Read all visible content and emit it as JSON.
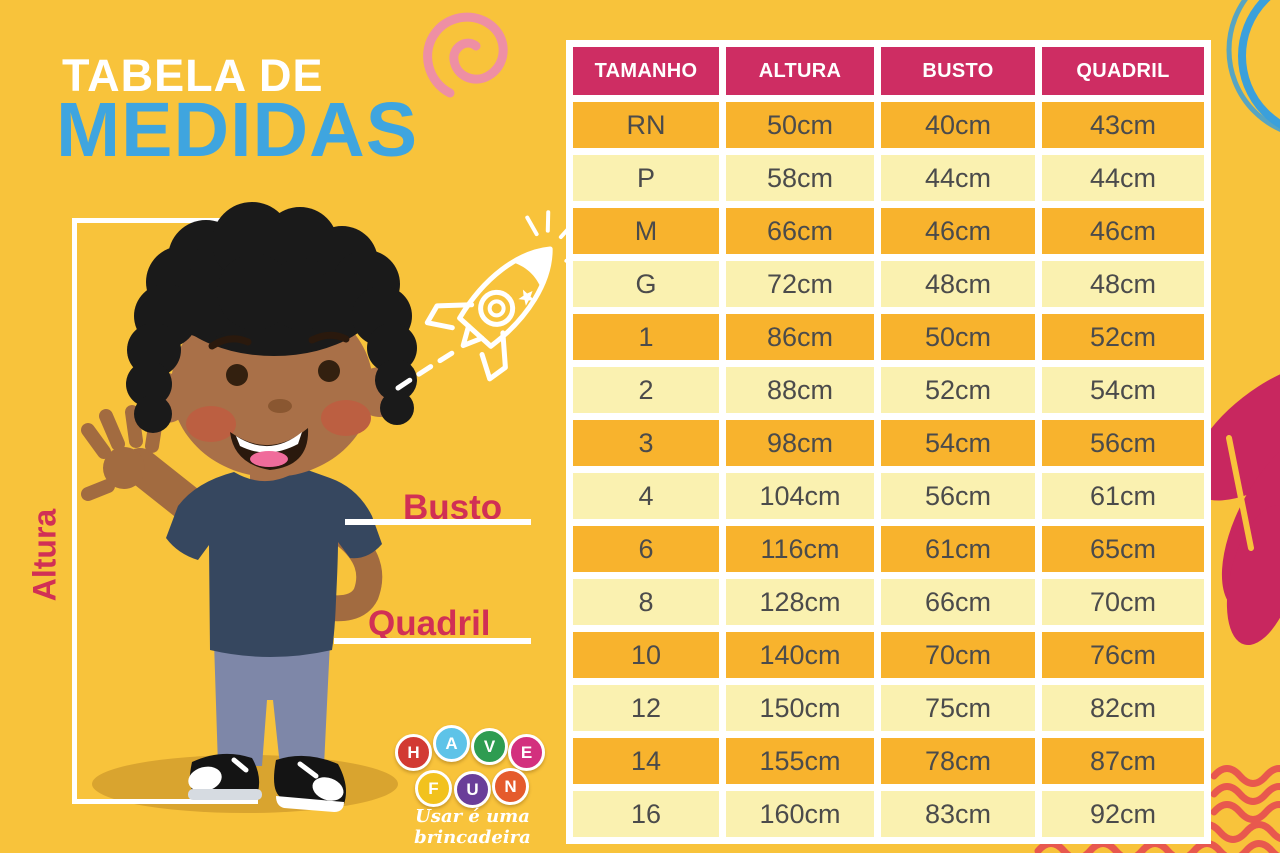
{
  "title": {
    "line1": "TABELA DE",
    "line2": "MEDIDAS"
  },
  "measure_labels": {
    "height": "Altura",
    "bust": "Busto",
    "hip": "Quadril"
  },
  "chart_data": {
    "type": "table",
    "title": "Tabela de Medidas",
    "columns": [
      "TAMANHO",
      "ALTURA",
      "BUSTO",
      "QUADRIL"
    ],
    "rows": [
      [
        "RN",
        "50cm",
        "40cm",
        "43cm"
      ],
      [
        "P",
        "58cm",
        "44cm",
        "44cm"
      ],
      [
        "M",
        "66cm",
        "46cm",
        "46cm"
      ],
      [
        "G",
        "72cm",
        "48cm",
        "48cm"
      ],
      [
        "1",
        "86cm",
        "50cm",
        "52cm"
      ],
      [
        "2",
        "88cm",
        "52cm",
        "54cm"
      ],
      [
        "3",
        "98cm",
        "54cm",
        "56cm"
      ],
      [
        "4",
        "104cm",
        "56cm",
        "61cm"
      ],
      [
        "6",
        "116cm",
        "61cm",
        "65cm"
      ],
      [
        "8",
        "128cm",
        "66cm",
        "70cm"
      ],
      [
        "10",
        "140cm",
        "70cm",
        "76cm"
      ],
      [
        "12",
        "150cm",
        "75cm",
        "82cm"
      ],
      [
        "14",
        "155cm",
        "78cm",
        "87cm"
      ],
      [
        "16",
        "160cm",
        "83cm",
        "92cm"
      ]
    ]
  },
  "logo": {
    "letters": [
      {
        "char": "H",
        "color": "#d23a33"
      },
      {
        "char": "A",
        "color": "#5ec3e8"
      },
      {
        "char": "V",
        "color": "#2e9c51"
      },
      {
        "char": "E",
        "color": "#d3307e"
      },
      {
        "char": "F",
        "color": "#f2c21e"
      },
      {
        "char": "U",
        "color": "#6a3e99"
      },
      {
        "char": "N",
        "color": "#e55b2c"
      }
    ],
    "tagline": "Usar é uma brincadeira"
  },
  "colors": {
    "background": "#f8c33b",
    "table_header": "#ce2d63",
    "row_orange": "#f8b32d",
    "row_cream": "#faf1b0",
    "cell_text": "#4b4b4b",
    "title_blue": "#3fa5df",
    "label_pink": "#d13055",
    "wave_red": "#e8584e",
    "spiral_pink": "#ee8fa4",
    "scribble_blue": "#3ba0db",
    "petal_magenta": "#c8275f"
  }
}
